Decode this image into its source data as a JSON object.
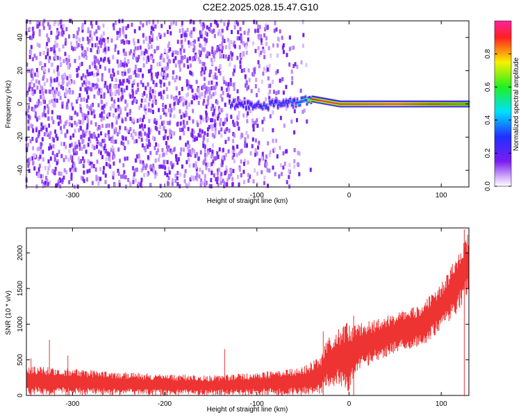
{
  "title": "C2E2.2025.028.15.47.G10",
  "chart_data": [
    {
      "type": "heatmap",
      "xlabel": "Height of straight line (km)",
      "ylabel": "Frequency (Hz)",
      "xlim": [
        -350,
        130
      ],
      "ylim": [
        -50,
        50
      ],
      "xticks": [
        -300,
        -200,
        -100,
        0,
        100
      ],
      "xtick_labels": [
        "-300",
        "-200",
        "-100",
        "0",
        "100"
      ],
      "yticks": [
        -40,
        -20,
        0,
        20,
        40
      ],
      "ytick_labels": [
        "-40",
        "-20",
        "0",
        "20",
        "40"
      ],
      "colorbar": {
        "label": "Normalized spectral amplitude",
        "range": [
          0,
          1
        ],
        "ticks": [
          0.0,
          0.2,
          0.4,
          0.6,
          0.8
        ],
        "tick_labels": [
          "0.0",
          "0.2",
          "0.4",
          "0.6",
          "0.8"
        ],
        "colormap": "rainbow (white-violet-blue-cyan-green-yellow-red-magenta)"
      },
      "features": {
        "noise_region_x": [
          -350,
          -50
        ],
        "signal_band": [
          {
            "x": -130,
            "freq_center": 0,
            "amplitude": 0.3
          },
          {
            "x": -100,
            "freq_center": -1,
            "amplitude": 0.35
          },
          {
            "x": -70,
            "freq_center": 0,
            "amplitude": 0.4
          },
          {
            "x": -50,
            "freq_center": 2,
            "amplitude": 0.5
          },
          {
            "x": -40,
            "freq_center": 3,
            "amplitude": 0.9
          },
          {
            "x": -30,
            "freq_center": 2,
            "amplitude": 0.95
          },
          {
            "x": -10,
            "freq_center": 0,
            "amplitude": 0.95
          },
          {
            "x": 0,
            "freq_center": 0,
            "amplitude": 0.95
          },
          {
            "x": 50,
            "freq_center": 0,
            "amplitude": 1.0
          },
          {
            "x": 90,
            "freq_center": 0,
            "amplitude": 0.9
          },
          {
            "x": 130,
            "freq_center": 0,
            "amplitude": 0.85
          }
        ]
      }
    },
    {
      "type": "line",
      "xlabel": "Height of straight line (km)",
      "ylabel": "SNR (10 * v/v)",
      "xlim": [
        -350,
        130
      ],
      "ylim": [
        0,
        2350
      ],
      "xticks": [
        -300,
        -200,
        -100,
        0,
        100
      ],
      "xtick_labels": [
        "-300",
        "-200",
        "-100",
        "0",
        "100"
      ],
      "yticks": [
        0,
        500,
        1000,
        1500,
        2000
      ],
      "ytick_labels": [
        "0",
        "500",
        "1000",
        "1500",
        "2000"
      ],
      "color": "#ee3333",
      "series": [
        {
          "envelope_x": [
            -350,
            -300,
            -250,
            -200,
            -150,
            -100,
            -50,
            -30,
            -25,
            -10,
            0,
            10,
            50,
            80,
            100,
            115,
            130
          ],
          "envelope_low": [
            0,
            0,
            0,
            0,
            0,
            0,
            0,
            0,
            100,
            150,
            0,
            350,
            600,
            700,
            900,
            1100,
            1450
          ],
          "envelope_high": [
            420,
            380,
            330,
            300,
            280,
            320,
            400,
            550,
            780,
            950,
            1050,
            1000,
            1150,
            1300,
            1600,
            1900,
            2300
          ],
          "spikes": [
            {
              "x": -345,
              "y": 520
            },
            {
              "x": -325,
              "y": 780
            },
            {
              "x": -305,
              "y": 560
            },
            {
              "x": -135,
              "y": 650
            },
            {
              "x": -28,
              "y": 900
            },
            {
              "x": 5,
              "y": 1120
            },
            {
              "x": 125,
              "y": 2330
            }
          ]
        }
      ]
    }
  ]
}
